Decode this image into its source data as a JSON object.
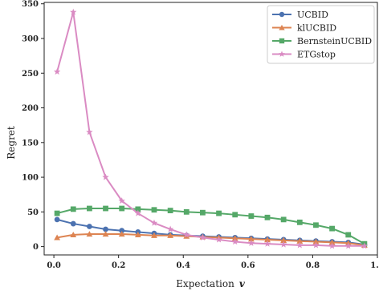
{
  "chart_data": {
    "type": "line",
    "xlabel": "Expectation",
    "xlabel_symbol": "v",
    "ylabel": "Regret",
    "xlim": [
      -0.03,
      1.0
    ],
    "ylim": [
      -12,
      352
    ],
    "xticks": [
      0.0,
      0.2,
      0.4,
      0.6,
      0.8,
      1.0
    ],
    "xtick_labels": [
      "0.0",
      "0.2",
      "0.4",
      "0.6",
      "0.8",
      "1.0"
    ],
    "yticks": [
      0,
      50,
      100,
      150,
      200,
      250,
      300,
      350
    ],
    "ytick_labels": [
      "0",
      "50",
      "100",
      "150",
      "200",
      "250",
      "300",
      "350"
    ],
    "grid": false,
    "legend_position": "top-right",
    "x": [
      0.01,
      0.06,
      0.11,
      0.16,
      0.21,
      0.26,
      0.31,
      0.36,
      0.41,
      0.46,
      0.51,
      0.56,
      0.61,
      0.66,
      0.71,
      0.76,
      0.81,
      0.86,
      0.91,
      0.96
    ],
    "series": [
      {
        "name": "UCBID",
        "color": "#4c72b0",
        "marker": "circle",
        "values": [
          39,
          33,
          29,
          25,
          23,
          21,
          19,
          17,
          16,
          15,
          14,
          13,
          12,
          11,
          10,
          9,
          8,
          7,
          6,
          3
        ]
      },
      {
        "name": "klUCBID",
        "color": "#dd8452",
        "marker": "triangle",
        "values": [
          13,
          17,
          18,
          18,
          18,
          17,
          16,
          16,
          15,
          14,
          13,
          12,
          11,
          10,
          9,
          8,
          7,
          6,
          5,
          2
        ]
      },
      {
        "name": "BernsteinUCBID",
        "color": "#55a868",
        "marker": "square",
        "values": [
          48,
          54,
          55,
          55,
          55,
          54,
          53,
          52,
          50,
          49,
          48,
          46,
          44,
          42,
          39,
          35,
          31,
          26,
          17,
          4
        ]
      },
      {
        "name": "ETGstop",
        "color": "#da8bc3",
        "marker": "star",
        "values": [
          252,
          338,
          165,
          100,
          66,
          48,
          34,
          25,
          17,
          13,
          10,
          7,
          5,
          4,
          3,
          2,
          2,
          1,
          1,
          1
        ]
      }
    ]
  }
}
